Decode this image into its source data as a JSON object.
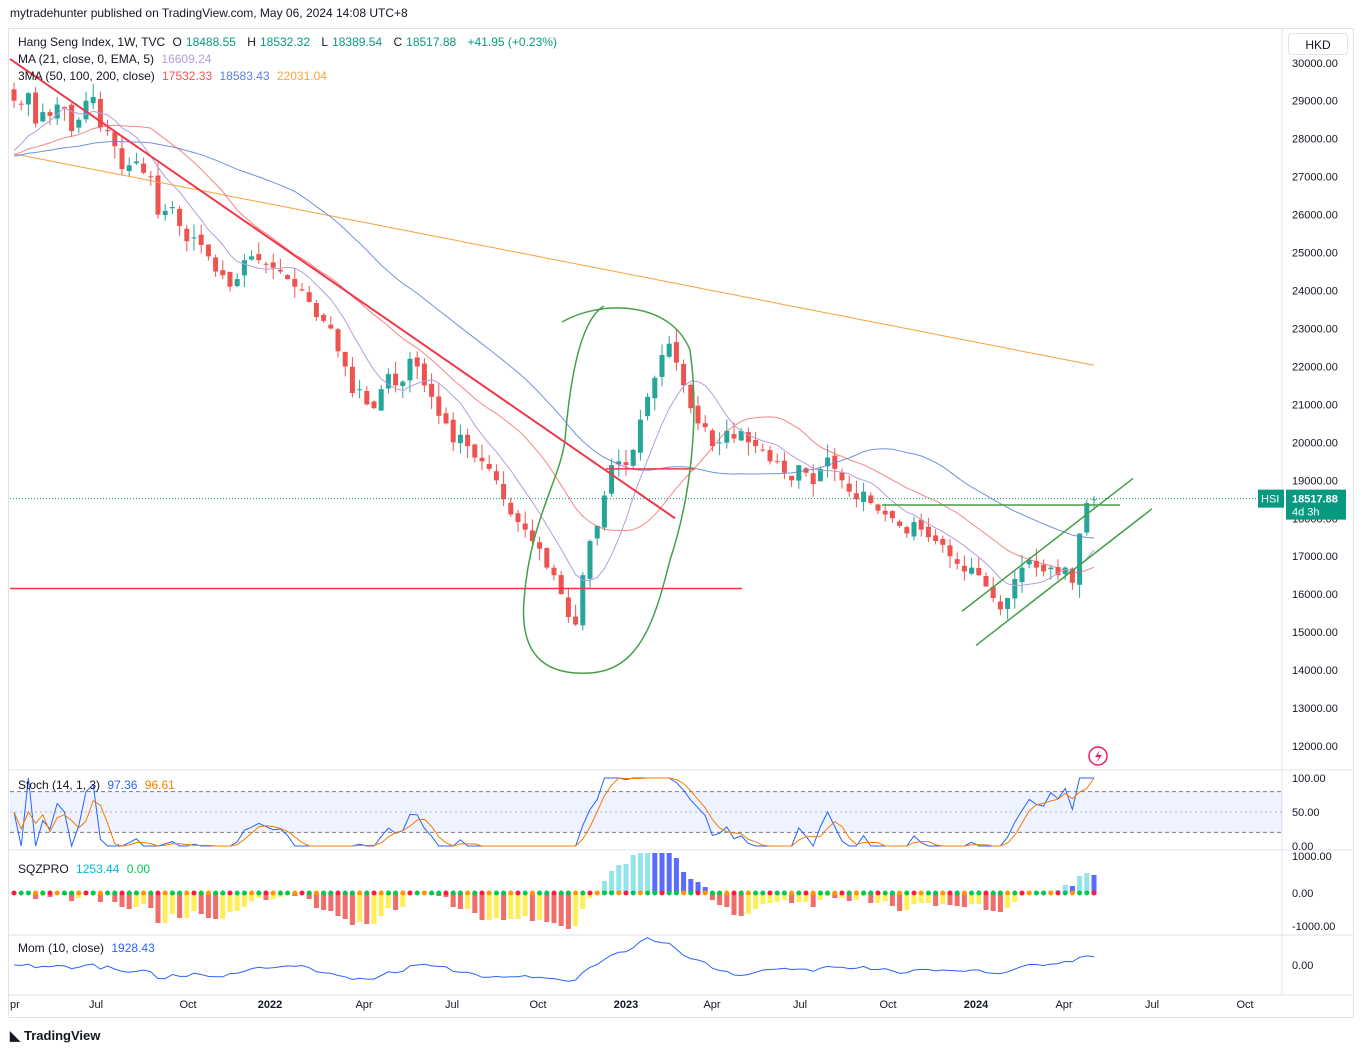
{
  "header": {
    "published": "mytradehunter published on TradingView.com, May 06, 2024 14:08 UTC+8"
  },
  "currency": "HKD",
  "legend": {
    "main": {
      "name": "Hang Seng Index, 1W, TVC",
      "o_label": "O",
      "o": "18488.55",
      "h_label": "H",
      "h": "18532.32",
      "l_label": "L",
      "l": "18389.54",
      "c_label": "C",
      "c": "18517.88",
      "change": "+41.95 (+0.23%)"
    },
    "ma": {
      "label": "MA (21, close, 0, EMA, 5)",
      "value": "16609.24",
      "color": "#b39ddb"
    },
    "ma3": {
      "label": "3MA (50, 100, 200, close)",
      "v50": "17532.33",
      "v100": "18583.43",
      "v200": "22031.04",
      "c50": "#ef5350",
      "c100": "#5b7fd6",
      "c200": "#f7a440"
    }
  },
  "price_tag": {
    "symbol": "HSI",
    "value": "18517.88",
    "countdown": "4d 3h"
  },
  "indicators": {
    "stoch": {
      "label": "Stoch (14, 1, 3)",
      "k": "97.36",
      "d": "96.61",
      "k_color": "#2962ff",
      "d_color": "#f57c00"
    },
    "sqz": {
      "label": "SQZPRO",
      "value": "1253.44",
      "value2": "0.00"
    },
    "mom": {
      "label": "Mom (10, close)",
      "value": "1928.43"
    }
  },
  "footer": {
    "brand": "TradingView"
  },
  "chart_data": {
    "type": "candlestick",
    "title": "Hang Seng Index, 1W, TVC",
    "x_tick_labels": [
      "pr",
      "Jul",
      "Oct",
      "2022",
      "Apr",
      "Jul",
      "Oct",
      "2023",
      "Apr",
      "Jul",
      "Oct",
      "2024",
      "Apr",
      "Jul",
      "Oct"
    ],
    "price_axis": {
      "ticks": [
        "30000.00",
        "29000.00",
        "28000.00",
        "27000.00",
        "26000.00",
        "25000.00",
        "24000.00",
        "23000.00",
        "22000.00",
        "21000.00",
        "20000.00",
        "19000.00",
        "18000.00",
        "17000.00",
        "16000.00",
        "15000.00",
        "14000.00",
        "13000.00",
        "12000.00"
      ],
      "ylim": [
        11500,
        30600
      ]
    },
    "weekly_closes_approx": [
      29000,
      28900,
      29200,
      28400,
      28700,
      28600,
      28900,
      28800,
      28200,
      28500,
      29000,
      29100,
      28300,
      28200,
      27800,
      27200,
      27300,
      27400,
      27100,
      27000,
      26000,
      26100,
      26200,
      25700,
      25300,
      25400,
      25200,
      24900,
      24500,
      24400,
      24100,
      24300,
      24800,
      24900,
      24800,
      24700,
      24600,
      24500,
      24300,
      24100,
      24000,
      23700,
      23300,
      23200,
      23000,
      22400,
      22000,
      21300,
      21400,
      21000,
      20900,
      21400,
      21800,
      21500,
      21600,
      22200,
      22000,
      21500,
      21200,
      20700,
      20500,
      20000,
      20200,
      19900,
      19600,
      19500,
      19300,
      19000,
      18500,
      18100,
      17900,
      17700,
      17400,
      17200,
      16700,
      16500,
      16000,
      15400,
      15200,
      16500,
      17400,
      17800,
      18600,
      19400,
      19500,
      19400,
      19800,
      20600,
      21200,
      21700,
      22300,
      22600,
      22100,
      21500,
      20900,
      20500,
      20400,
      19900,
      20000,
      20300,
      20100,
      20300,
      20000,
      19900,
      19800,
      19500,
      19500,
      19200,
      19000,
      19400,
      19200,
      18900,
      19300,
      19600,
      19300,
      19000,
      18700,
      18500,
      18700,
      18400,
      18200,
      18100,
      18000,
      17800,
      17600,
      17900,
      17700,
      17500,
      17400,
      17300,
      17000,
      16800,
      16600,
      16700,
      16500,
      16200,
      15900,
      15600,
      15900,
      16400,
      16700,
      16900,
      16700,
      16600,
      16700,
      16500,
      16700,
      16300,
      17600,
      18400,
      18500
    ],
    "overlays": {
      "ma21_ema": 16609.24,
      "sma50": 17532.33,
      "sma100": 18583.43,
      "sma200": 22031.04
    },
    "drawings": {
      "horizontal_support": 16150,
      "horizontal_resistance": 18350,
      "pivot_level": 19300
    },
    "stoch": {
      "k": 97.36,
      "d": 96.61,
      "upper": 80,
      "lower": 20,
      "ticks": [
        "100.00",
        "50.00",
        "0.00"
      ]
    },
    "sqzpro": {
      "value": 1253.44,
      "ticks": [
        "1000.00",
        "0.00",
        "-1000.00"
      ]
    },
    "mom": {
      "value": 1928.43,
      "ticks": [
        "0.00"
      ]
    }
  }
}
